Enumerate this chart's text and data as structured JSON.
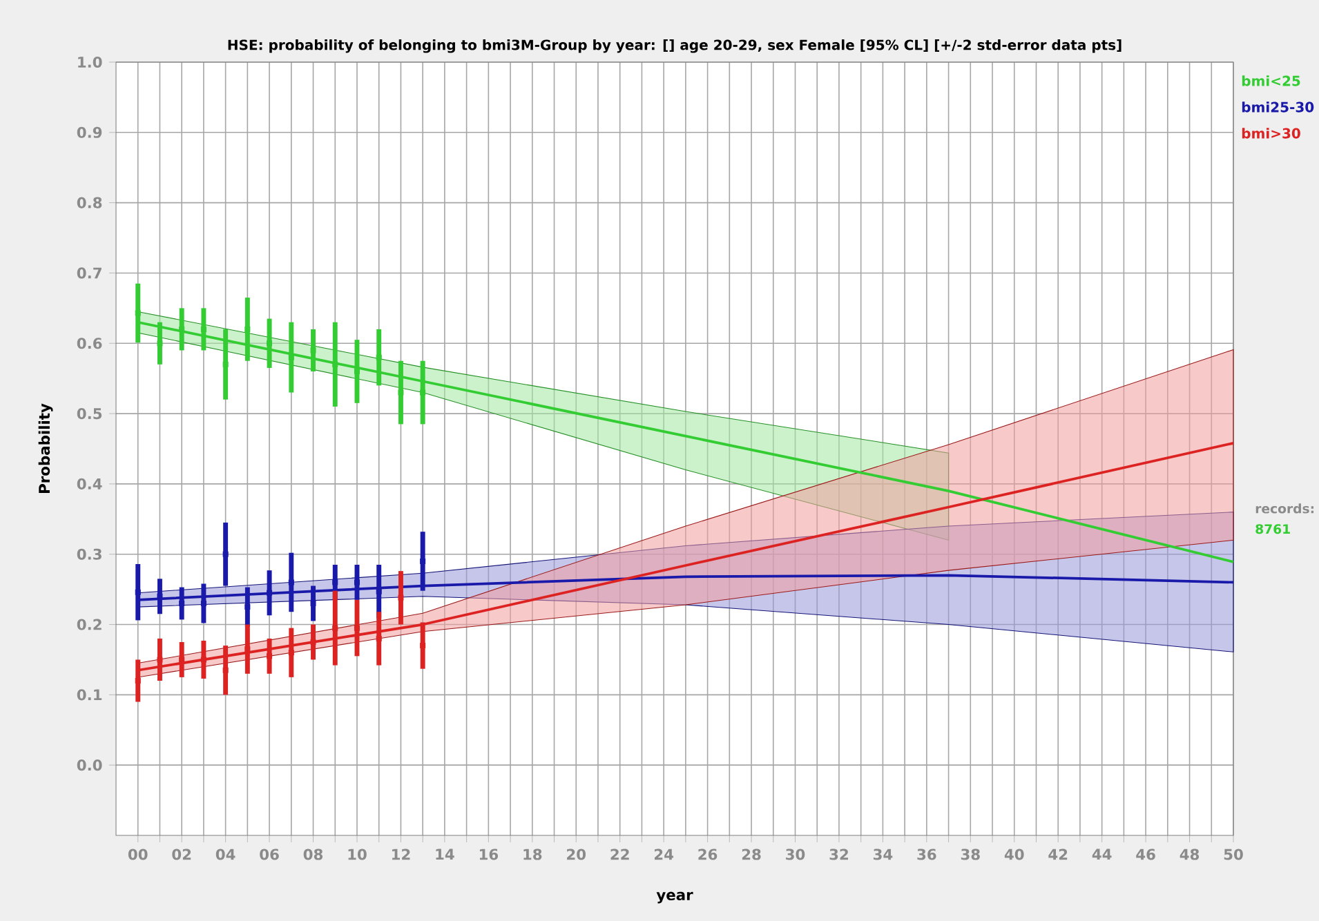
{
  "chart_data": {
    "type": "line",
    "title": "HSE: probability of belonging to bmi3M-Group by year: []  age 20-29, sex Female  [95% CL] [+/-2 std-error data pts]",
    "xlabel": "year",
    "ylabel": "Probability",
    "xlim": [
      -1,
      50
    ],
    "ylim": [
      -0.1,
      1.0
    ],
    "xticks": [
      {
        "value": 0,
        "label": "00"
      },
      {
        "value": 1,
        "label": null
      },
      {
        "value": 2,
        "label": "02"
      },
      {
        "value": 3,
        "label": null
      },
      {
        "value": 4,
        "label": "04"
      },
      {
        "value": 5,
        "label": null
      },
      {
        "value": 6,
        "label": "06"
      },
      {
        "value": 7,
        "label": null
      },
      {
        "value": 8,
        "label": "08"
      },
      {
        "value": 9,
        "label": null
      },
      {
        "value": 10,
        "label": "10"
      },
      {
        "value": 11,
        "label": null
      },
      {
        "value": 12,
        "label": "12"
      },
      {
        "value": 13,
        "label": null
      },
      {
        "value": 14,
        "label": "14"
      },
      {
        "value": 15,
        "label": null
      },
      {
        "value": 16,
        "label": "16"
      },
      {
        "value": 17,
        "label": null
      },
      {
        "value": 18,
        "label": "18"
      },
      {
        "value": 19,
        "label": null
      },
      {
        "value": 20,
        "label": "20"
      },
      {
        "value": 21,
        "label": null
      },
      {
        "value": 22,
        "label": "22"
      },
      {
        "value": 23,
        "label": null
      },
      {
        "value": 24,
        "label": "24"
      },
      {
        "value": 25,
        "label": null
      },
      {
        "value": 26,
        "label": "26"
      },
      {
        "value": 27,
        "label": null
      },
      {
        "value": 28,
        "label": "28"
      },
      {
        "value": 29,
        "label": null
      },
      {
        "value": 30,
        "label": "30"
      },
      {
        "value": 31,
        "label": null
      },
      {
        "value": 32,
        "label": "32"
      },
      {
        "value": 33,
        "label": null
      },
      {
        "value": 34,
        "label": "34"
      },
      {
        "value": 35,
        "label": null
      },
      {
        "value": 36,
        "label": "36"
      },
      {
        "value": 37,
        "label": null
      },
      {
        "value": 38,
        "label": "38"
      },
      {
        "value": 39,
        "label": null
      },
      {
        "value": 40,
        "label": "40"
      },
      {
        "value": 41,
        "label": null
      },
      {
        "value": 42,
        "label": "42"
      },
      {
        "value": 43,
        "label": null
      },
      {
        "value": 44,
        "label": "44"
      },
      {
        "value": 45,
        "label": null
      },
      {
        "value": 46,
        "label": "46"
      },
      {
        "value": 47,
        "label": null
      },
      {
        "value": 48,
        "label": "48"
      },
      {
        "value": 49,
        "label": null
      },
      {
        "value": 50,
        "label": "50"
      }
    ],
    "yticks": [
      {
        "value": 0,
        "label": "0.0"
      },
      {
        "value": 0.1,
        "label": "0.1"
      },
      {
        "value": 0.2,
        "label": "0.2"
      },
      {
        "value": 0.3,
        "label": "0.3"
      },
      {
        "value": 0.4,
        "label": "0.4"
      },
      {
        "value": 0.5,
        "label": "0.5"
      },
      {
        "value": 0.6,
        "label": "0.6"
      },
      {
        "value": 0.7,
        "label": "0.7"
      },
      {
        "value": 0.8,
        "label": "0.8"
      },
      {
        "value": 0.9,
        "label": "0.9"
      },
      {
        "value": 1.0,
        "label": "1.0"
      }
    ],
    "grid": true,
    "legend": "right",
    "series": [
      {
        "name": "bmi<25",
        "color": "#33cc33",
        "x": [
          0,
          13,
          25,
          37,
          50
        ],
        "values": [
          0.63,
          0.546,
          0.468,
          0.39,
          0.289
        ],
        "lower": [
          0.615,
          0.53,
          0.42,
          0.32,
          null
        ],
        "upper": [
          0.645,
          0.566,
          0.503,
          0.444,
          null
        ]
      },
      {
        "name": "bmi25-30",
        "color": "#1a1aaa",
        "x": [
          0,
          13,
          25,
          37,
          50
        ],
        "values": [
          0.235,
          0.255,
          0.268,
          0.27,
          0.26
        ],
        "lower": [
          0.225,
          0.24,
          0.228,
          0.2,
          0.161
        ],
        "upper": [
          0.245,
          0.273,
          0.312,
          0.34,
          0.36
        ]
      },
      {
        "name": "bmi>30",
        "color": "#dd2222",
        "x": [
          0,
          13,
          25,
          37,
          50
        ],
        "values": [
          0.135,
          0.2,
          0.284,
          0.367,
          0.458
        ],
        "lower": [
          0.125,
          0.19,
          0.228,
          0.277,
          0.32
        ],
        "upper": [
          0.145,
          0.216,
          0.34,
          0.456,
          0.591
        ]
      },
      {
        "type": "scatter",
        "color": "#33cc33",
        "x": [
          0,
          1,
          2,
          3,
          4,
          5,
          6,
          7,
          8,
          9,
          10,
          11,
          12,
          13
        ],
        "values": [
          0.643,
          0.6,
          0.62,
          0.62,
          0.57,
          0.62,
          0.6,
          0.58,
          0.59,
          0.57,
          0.56,
          0.58,
          0.53,
          0.53
        ],
        "errors": [
          0.042,
          0.03,
          0.03,
          0.03,
          0.05,
          0.045,
          0.035,
          0.05,
          0.03,
          0.06,
          0.045,
          0.04,
          0.045,
          0.045
        ]
      },
      {
        "type": "scatter",
        "color": "#1a1aaa",
        "x": [
          0,
          1,
          2,
          3,
          4,
          5,
          6,
          7,
          8,
          9,
          10,
          11,
          13
        ],
        "values": [
          0.246,
          0.24,
          0.23,
          0.23,
          0.3,
          0.225,
          0.245,
          0.26,
          0.23,
          0.26,
          0.26,
          0.247,
          0.29
        ],
        "errors": [
          0.04,
          0.025,
          0.023,
          0.028,
          0.045,
          0.028,
          0.032,
          0.042,
          0.025,
          0.025,
          0.025,
          0.038,
          0.042
        ]
      },
      {
        "type": "scatter",
        "color": "#dd2222",
        "x": [
          0,
          1,
          2,
          3,
          4,
          5,
          6,
          7,
          8,
          9,
          10,
          11,
          12,
          13
        ],
        "values": [
          0.12,
          0.15,
          0.15,
          0.15,
          0.135,
          0.165,
          0.155,
          0.16,
          0.175,
          0.195,
          0.195,
          0.18,
          0.238,
          0.17
        ],
        "errors": [
          0.03,
          0.03,
          0.025,
          0.027,
          0.035,
          0.035,
          0.025,
          0.035,
          0.025,
          0.053,
          0.04,
          0.038,
          0.038,
          0.033
        ]
      }
    ],
    "annotations": [
      "records:",
      "8761"
    ]
  }
}
